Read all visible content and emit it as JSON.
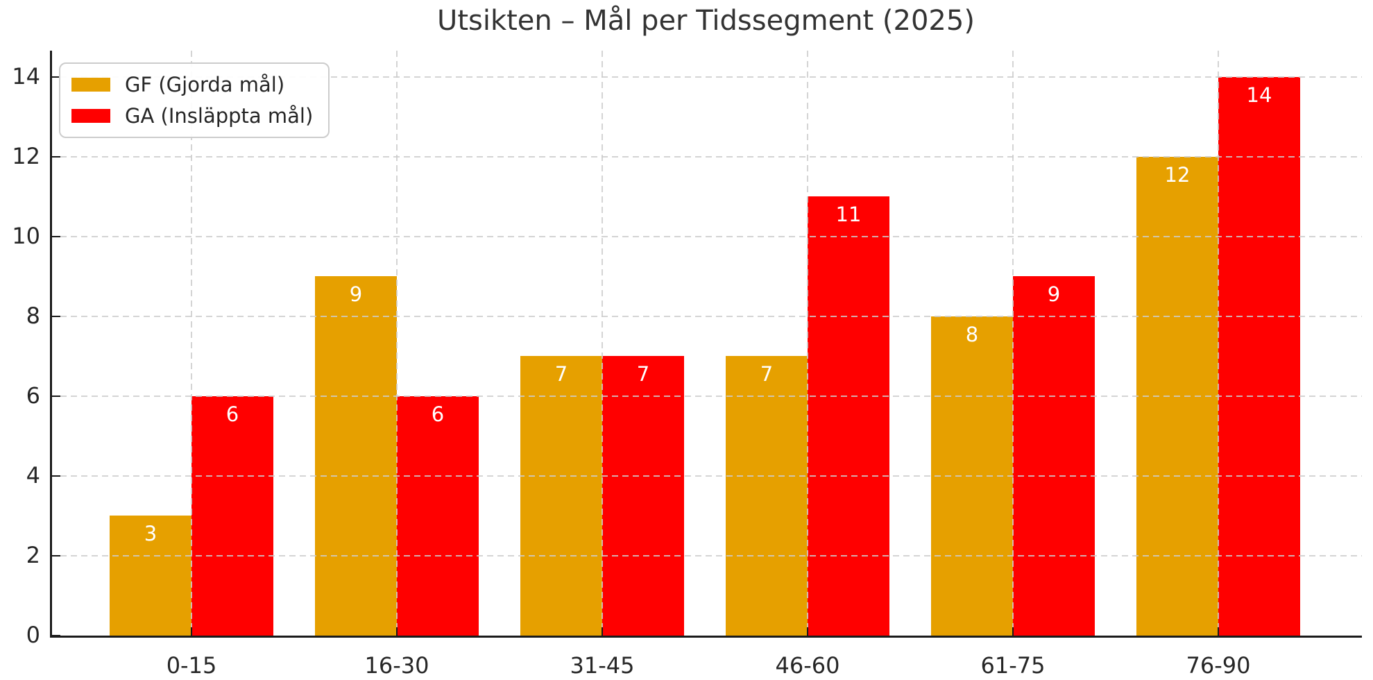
{
  "chart_data": {
    "type": "bar",
    "title": "Utsikten – Mål per Tidssegment (2025)",
    "categories": [
      "0-15",
      "16-30",
      "31-45",
      "46-60",
      "61-75",
      "76-90"
    ],
    "series": [
      {
        "name": "GF (Gjorda mål)",
        "key": "gf",
        "color": "#e6a000",
        "values": [
          3,
          9,
          7,
          7,
          8,
          12
        ]
      },
      {
        "name": "GA (Insläppta mål)",
        "key": "ga",
        "color": "#ff0000",
        "values": [
          6,
          6,
          7,
          11,
          9,
          14
        ]
      }
    ],
    "xlabel": "",
    "ylabel": "",
    "ylim": [
      0,
      14.66
    ],
    "yticks": [
      0,
      2,
      4,
      6,
      8,
      10,
      12,
      14
    ],
    "grid": true,
    "grid_style": "dashed",
    "legend_position": "upper-left",
    "bar_label_color": "#ffffff"
  },
  "colors": {
    "axis": "#1a1a1a",
    "text": "#262626",
    "title": "#333333",
    "grid": "#cccccc",
    "background": "#ffffff"
  }
}
